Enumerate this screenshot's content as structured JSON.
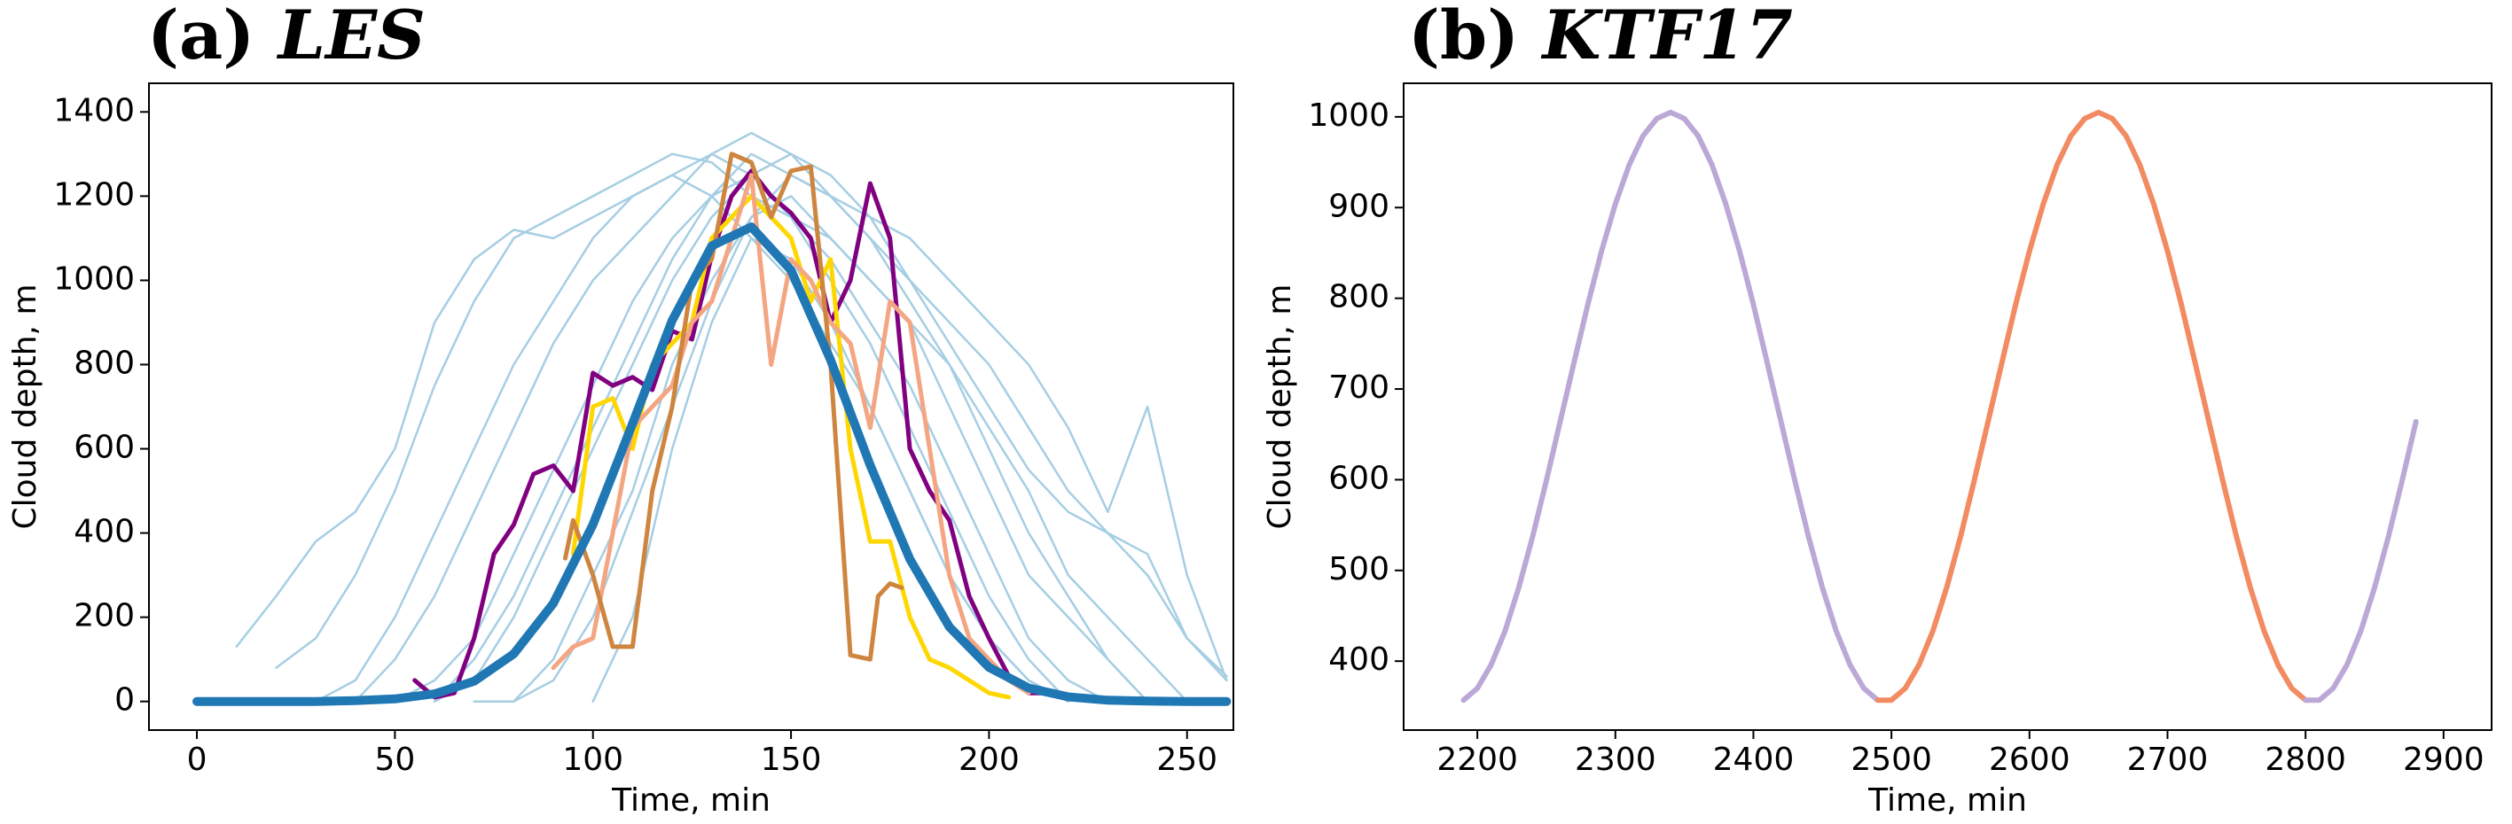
{
  "chart_data": [
    {
      "type": "line",
      "panel": "(a)",
      "title": "LES",
      "xlabel": "Time, min",
      "ylabel": "Cloud depth, m",
      "xlim": [
        -12.1,
        261.7
      ],
      "ylim": [
        -68,
        1468
      ],
      "xticks": [
        0,
        50,
        100,
        150,
        200,
        250
      ],
      "yticks": [
        0,
        200,
        400,
        600,
        800,
        1000,
        1200,
        1400
      ],
      "x": [
        0,
        10,
        20,
        30,
        40,
        50,
        60,
        70,
        80,
        90,
        100,
        110,
        120,
        130,
        140,
        150,
        160,
        170,
        180,
        190,
        200,
        210,
        220,
        230,
        240,
        250,
        260
      ],
      "series": [
        {
          "color": "#a6cee3",
          "values": [
            null,
            130,
            250,
            380,
            450,
            600,
            900,
            1050,
            1120,
            1100,
            1150,
            1200,
            1250,
            1200,
            1100,
            1000,
            850,
            700,
            500,
            300,
            150,
            50,
            0,
            null,
            null,
            null,
            null
          ]
        },
        {
          "color": "#a6cee3",
          "values": [
            null,
            null,
            80,
            150,
            300,
            500,
            750,
            950,
            1100,
            1150,
            1200,
            1250,
            1300,
            1280,
            1200,
            1150,
            1050,
            900,
            750,
            550,
            350,
            150,
            50,
            0,
            null,
            null,
            null
          ]
        },
        {
          "color": "#a6cee3",
          "values": [
            null,
            null,
            null,
            null,
            0,
            100,
            250,
            450,
            650,
            850,
            1000,
            1100,
            1200,
            1300,
            1350,
            1300,
            1200,
            1100,
            1000,
            900,
            800,
            650,
            500,
            400,
            300,
            150,
            50
          ]
        },
        {
          "color": "#a6cee3",
          "values": [
            null,
            null,
            null,
            null,
            null,
            null,
            0,
            50,
            200,
            400,
            600,
            800,
            1000,
            1150,
            1250,
            1300,
            1250,
            1150,
            1000,
            850,
            700,
            550,
            450,
            400,
            350,
            150,
            60
          ]
        },
        {
          "color": "#a6cee3",
          "values": [
            null,
            null,
            null,
            null,
            null,
            null,
            null,
            null,
            0,
            100,
            300,
            500,
            800,
            1000,
            1150,
            1200,
            1100,
            1000,
            900,
            700,
            500,
            300,
            200,
            100,
            0,
            null,
            null
          ]
        },
        {
          "color": "#a6cee3",
          "values": [
            null,
            null,
            null,
            null,
            null,
            0,
            50,
            150,
            350,
            550,
            750,
            950,
            1100,
            1200,
            1250,
            1150,
            1000,
            850,
            650,
            450,
            250,
            100,
            0,
            null,
            null,
            null,
            null
          ]
        },
        {
          "color": "#a6cee3",
          "values": [
            null,
            null,
            null,
            null,
            null,
            null,
            null,
            null,
            null,
            null,
            0,
            200,
            600,
            900,
            1100,
            1050,
            900,
            700,
            500,
            300,
            150,
            50,
            0,
            null,
            null,
            null,
            null
          ]
        },
        {
          "color": "#a6cee3",
          "values": [
            null,
            null,
            null,
            0,
            50,
            200,
            400,
            600,
            800,
            950,
            1100,
            1200,
            1250,
            1300,
            1250,
            1150,
            1100,
            1000,
            900,
            800,
            650,
            500,
            300,
            200,
            100,
            0,
            null
          ]
        },
        {
          "color": "#a6cee3",
          "values": [
            null,
            null,
            null,
            null,
            null,
            null,
            0,
            100,
            250,
            450,
            650,
            850,
            1050,
            1200,
            1300,
            1250,
            1200,
            1150,
            1100,
            1000,
            900,
            800,
            650,
            450,
            700,
            300,
            50
          ]
        },
        {
          "color": "#a6cee3",
          "values": [
            null,
            null,
            null,
            null,
            null,
            null,
            null,
            0,
            0,
            50,
            200,
            450,
            700,
            950,
            1150,
            1250,
            1200,
            1100,
            950,
            800,
            600,
            400,
            250,
            100,
            0,
            null,
            null
          ]
        },
        {
          "color": "#800080",
          "width": 5,
          "x": [
            55,
            60,
            65,
            70,
            75,
            80,
            85,
            90,
            95,
            100,
            105,
            110,
            115,
            120,
            125,
            130,
            135,
            140,
            145,
            150,
            155,
            160,
            165,
            170,
            175,
            180,
            185,
            190,
            195,
            200,
            205,
            210,
            215
          ],
          "values": [
            50,
            10,
            20,
            150,
            350,
            420,
            540,
            560,
            500,
            780,
            750,
            770,
            740,
            880,
            860,
            1060,
            1200,
            1260,
            1200,
            1160,
            1100,
            900,
            1000,
            1230,
            1100,
            600,
            500,
            430,
            250,
            150,
            60,
            20,
            20
          ]
        },
        {
          "color": "#ffd700",
          "width": 5,
          "x": [
            95,
            100,
            105,
            110,
            115,
            120,
            125,
            130,
            135,
            140,
            145,
            150,
            155,
            160,
            165,
            170,
            175,
            180,
            185,
            190,
            195,
            200,
            205
          ],
          "values": [
            350,
            700,
            720,
            600,
            800,
            850,
            900,
            1100,
            1150,
            1200,
            1150,
            1100,
            950,
            1050,
            600,
            380,
            380,
            200,
            100,
            80,
            50,
            20,
            10
          ]
        },
        {
          "color": "#f4a582",
          "width": 5,
          "x": [
            90,
            95,
            100,
            105,
            110,
            115,
            120,
            125,
            130,
            135,
            140,
            145,
            150,
            155,
            160,
            165,
            170,
            175,
            180,
            185,
            190,
            195,
            200,
            205,
            210
          ],
          "values": [
            80,
            130,
            150,
            400,
            650,
            700,
            750,
            900,
            950,
            1100,
            1250,
            800,
            1050,
            1000,
            900,
            850,
            650,
            950,
            900,
            600,
            300,
            150,
            100,
            50,
            20
          ]
        },
        {
          "color": "#cd853f",
          "width": 5,
          "x": [
            93,
            95,
            100,
            105,
            110,
            115,
            120,
            125,
            130,
            135,
            140,
            145,
            150,
            155,
            160,
            165,
            170,
            172,
            175,
            178
          ],
          "values": [
            340,
            430,
            300,
            130,
            130,
            500,
            700,
            1000,
            1050,
            1300,
            1280,
            1150,
            1260,
            1270,
            800,
            110,
            100,
            250,
            280,
            270
          ]
        },
        {
          "color": "#1f77b4",
          "width": 10,
          "x": [
            0,
            10,
            20,
            30,
            40,
            50,
            60,
            70,
            80,
            90,
            100,
            110,
            120,
            130,
            140,
            150,
            160,
            170,
            180,
            190,
            200,
            210,
            220,
            230,
            240,
            250,
            260
          ],
          "values": [
            0,
            0,
            0,
            0,
            2,
            6,
            18,
            48,
            113,
            233,
            420,
            660,
            905,
            1082,
            1127,
            1024,
            811,
            561,
            338,
            177,
            81,
            32,
            11,
            3,
            1,
            0,
            0
          ]
        }
      ]
    },
    {
      "type": "line",
      "panel": "(b)",
      "title": "KTF17",
      "xlabel": "Time, min",
      "ylabel": "Cloud depth, m",
      "xlim": [
        2146.6,
        2934.8
      ],
      "ylim": [
        324,
        1037
      ],
      "xticks": [
        2200,
        2300,
        2400,
        2500,
        2600,
        2700,
        2800,
        2900
      ],
      "yticks": [
        400,
        500,
        600,
        700,
        800,
        900,
        1000
      ],
      "series": [
        {
          "color": "#bca8d6",
          "width": 6,
          "x": [
            2190,
            2200,
            2210,
            2220,
            2230,
            2240,
            2250,
            2260,
            2270,
            2280,
            2290,
            2300,
            2310,
            2320,
            2330,
            2340,
            2350,
            2360,
            2370,
            2380,
            2390,
            2400,
            2410,
            2420,
            2430,
            2440,
            2450,
            2460,
            2470,
            2480,
            2490
          ],
          "values": [
            357,
            370,
            396,
            433,
            481,
            537,
            599,
            664,
            729,
            793,
            852,
            904,
            947,
            979,
            998,
            1005,
            998,
            979,
            947,
            904,
            852,
            793,
            729,
            664,
            599,
            537,
            481,
            433,
            396,
            370,
            357
          ]
        },
        {
          "color": "#f28a62",
          "width": 6,
          "x": [
            2490,
            2500,
            2510,
            2520,
            2530,
            2540,
            2550,
            2560,
            2570,
            2580,
            2590,
            2600,
            2610,
            2620,
            2630,
            2640,
            2650,
            2660,
            2670,
            2680,
            2690,
            2700,
            2710,
            2720,
            2730,
            2740,
            2750,
            2760,
            2770,
            2780,
            2790,
            2800
          ],
          "values": [
            357,
            357,
            370,
            396,
            433,
            481,
            537,
            599,
            664,
            729,
            793,
            852,
            904,
            947,
            979,
            998,
            1005,
            998,
            979,
            947,
            904,
            852,
            793,
            729,
            664,
            599,
            537,
            481,
            433,
            396,
            370,
            357
          ]
        },
        {
          "color": "#bca8d6",
          "width": 6,
          "x": [
            2800,
            2810,
            2820,
            2830,
            2840,
            2850,
            2860,
            2870,
            2880
          ],
          "values": [
            357,
            357,
            370,
            396,
            433,
            481,
            537,
            599,
            664
          ]
        }
      ]
    }
  ]
}
